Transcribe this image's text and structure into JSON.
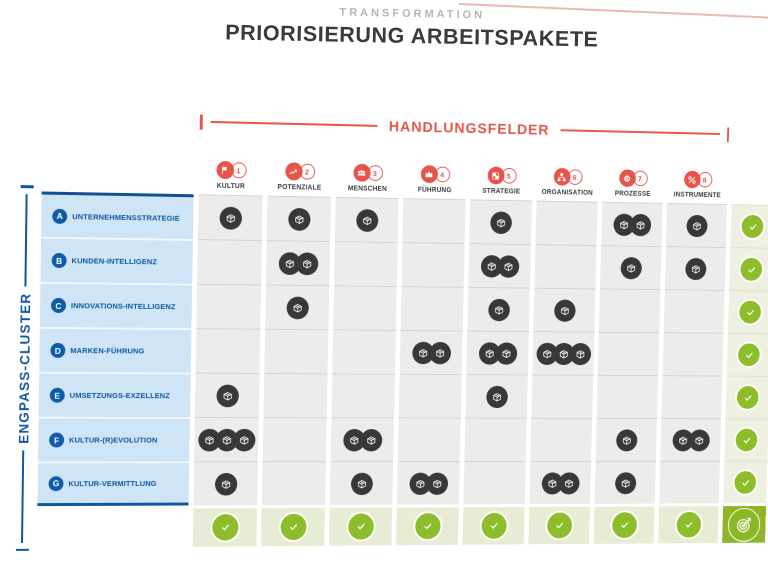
{
  "page": {
    "eyebrow": "TRANSFORMATION",
    "title": "PRIORISIERUNG ARBEITSPAKETE"
  },
  "columns_axis": {
    "label": "HANDLUNGSFELDER",
    "columns": [
      {
        "num": "1",
        "label": "KULTUR",
        "icon": "flag-icon"
      },
      {
        "num": "2",
        "label": "POTENZIALE",
        "icon": "trend-up-icon"
      },
      {
        "num": "3",
        "label": "MENSCHEN",
        "icon": "people-icon"
      },
      {
        "num": "4",
        "label": "FÜHRUNG",
        "icon": "crown-icon"
      },
      {
        "num": "5",
        "label": "STRATEGIE",
        "icon": "strategy-icon"
      },
      {
        "num": "6",
        "label": "ORGANISATION",
        "icon": "orgchart-icon"
      },
      {
        "num": "7",
        "label": "PROZESSE",
        "icon": "gear-icon"
      },
      {
        "num": "8",
        "label": "INSTRUMENTE",
        "icon": "tools-icon"
      }
    ]
  },
  "rows_axis": {
    "label": "ENGPASS-CLUSTER",
    "rows": [
      {
        "letter": "A",
        "label": "UNTERNEHMENSSTRATEGIE",
        "packages": [
          1,
          1,
          1,
          0,
          1,
          0,
          2,
          1
        ],
        "row_check": true
      },
      {
        "letter": "B",
        "label": "KUNDEN-INTELLIGENZ",
        "packages": [
          0,
          2,
          0,
          0,
          2,
          0,
          1,
          1
        ],
        "row_check": true
      },
      {
        "letter": "C",
        "label": "INNOVATIONS-INTELLIGENZ",
        "packages": [
          0,
          1,
          0,
          0,
          1,
          1,
          0,
          0
        ],
        "row_check": true
      },
      {
        "letter": "D",
        "label": "MARKEN-FÜHRUNG",
        "packages": [
          0,
          0,
          0,
          2,
          2,
          3,
          0,
          0
        ],
        "row_check": true
      },
      {
        "letter": "E",
        "label": "UMSETZUNGS-EXZELLENZ",
        "packages": [
          1,
          0,
          0,
          0,
          1,
          0,
          0,
          0
        ],
        "row_check": true
      },
      {
        "letter": "F",
        "label": "KULTUR-(R)EVOLUTION",
        "packages": [
          3,
          0,
          2,
          0,
          0,
          0,
          1,
          2
        ],
        "row_check": true
      },
      {
        "letter": "G",
        "label": "KULTUR-VERMITTLUNG",
        "packages": [
          1,
          0,
          1,
          2,
          0,
          2,
          1,
          0
        ],
        "row_check": true
      }
    ]
  },
  "footer": {
    "column_checks": [
      true,
      true,
      true,
      true,
      true,
      true,
      true,
      true
    ],
    "summary_icon": "target-icon"
  },
  "icons": {
    "cell_marker": "package-icon",
    "done_marker": "check-icon"
  },
  "colors": {
    "accent_red": "#e6544a",
    "title_dark": "#3a3a3c",
    "eyebrow_gray": "#b7b6b5",
    "blue": "#0f57a2",
    "sidebar_bg": "#cfe4f4",
    "cell_bg": "#edeceb",
    "marker_dark": "#383838",
    "check_green": "#8ebd2b",
    "target_green": "#8cb827",
    "check_col_bg": "#eef0e1",
    "check_row_bg": "#e7ecd4"
  }
}
